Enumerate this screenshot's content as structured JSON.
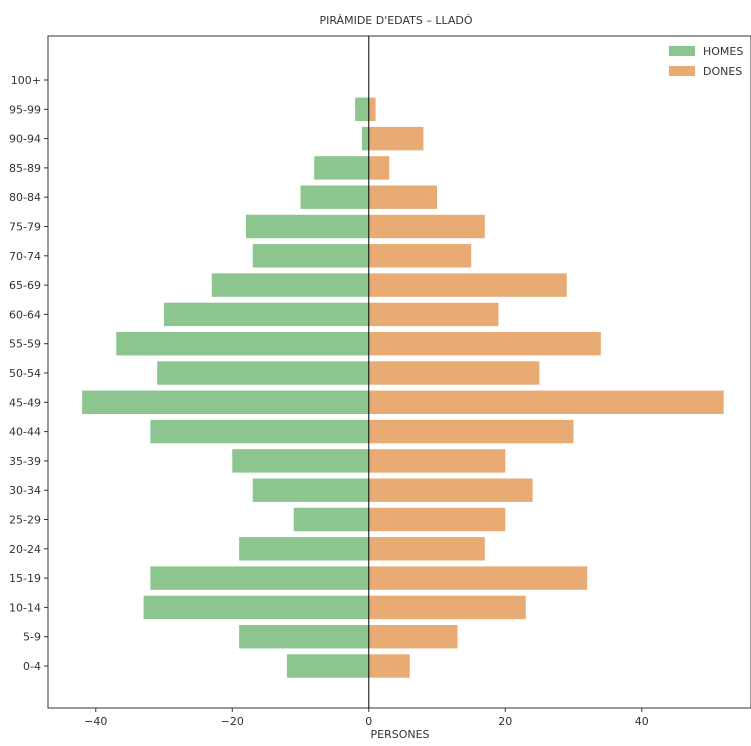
{
  "chart_data": {
    "type": "bar",
    "orientation": "horizontal",
    "title": "PIRÀMIDE D'EDATS – LLADÓ",
    "xlabel": "PERSONES",
    "ylabel": "",
    "categories": [
      "0-4",
      "5-9",
      "10-14",
      "15-19",
      "20-24",
      "25-29",
      "30-34",
      "35-39",
      "40-44",
      "45-49",
      "50-54",
      "55-59",
      "60-64",
      "65-69",
      "70-74",
      "75-79",
      "80-84",
      "85-89",
      "90-94",
      "95-99",
      "100+"
    ],
    "series": [
      {
        "name": "HOMES",
        "color": "#8dc58f",
        "values": [
          -12,
          -19,
          -33,
          -32,
          -19,
          -11,
          -17,
          -20,
          -32,
          -42,
          -31,
          -37,
          -30,
          -23,
          -17,
          -18,
          -10,
          -8,
          -1,
          -2,
          0
        ]
      },
      {
        "name": "DONES",
        "color": "#e8ab74",
        "values": [
          6,
          13,
          23,
          32,
          17,
          20,
          24,
          20,
          30,
          52,
          25,
          34,
          19,
          29,
          15,
          17,
          10,
          3,
          8,
          1,
          0
        ]
      }
    ],
    "xlim": [
      -47,
      56
    ],
    "xticks": [
      -40,
      -20,
      0,
      20,
      40
    ],
    "xtick_labels": [
      "−40",
      "−20",
      "0",
      "20",
      "40"
    ],
    "grid": false,
    "legend_position": "top-right"
  }
}
